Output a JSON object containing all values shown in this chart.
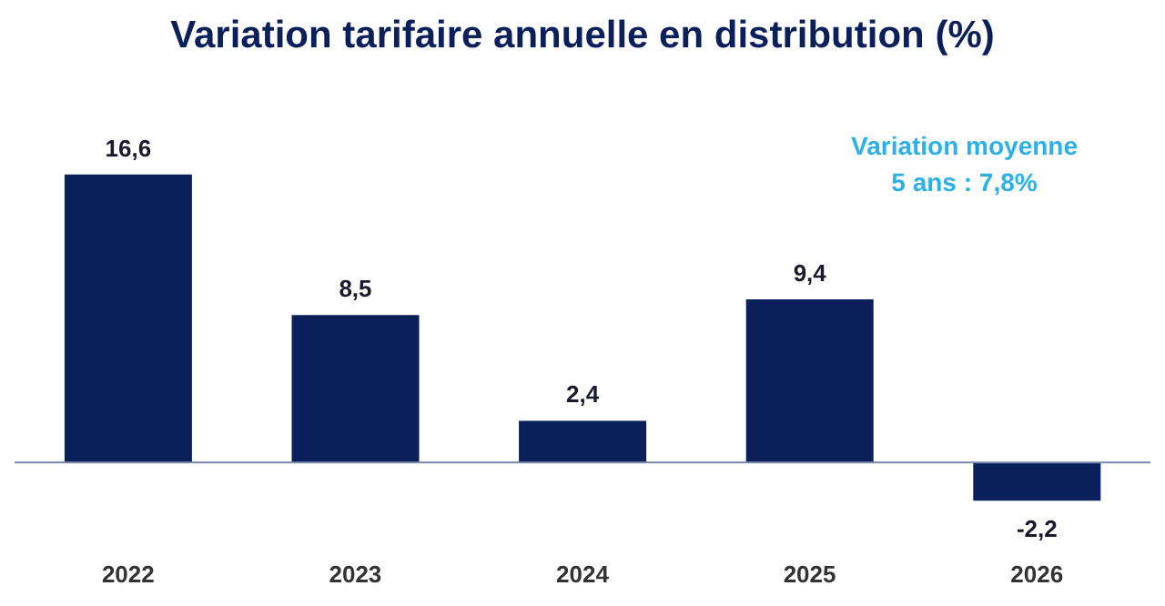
{
  "chart_data": {
    "type": "bar",
    "title": "Variation tarifaire annuelle en distribution (%)",
    "categories": [
      "2022",
      "2023",
      "2024",
      "2025",
      "2026"
    ],
    "values": [
      16.6,
      8.5,
      2.4,
      9.4,
      -2.2
    ],
    "value_labels": [
      "16,6",
      "8,5",
      "2,4",
      "9,4",
      "-2,2"
    ],
    "color": "#0b1f5b",
    "annotations": [
      "Variation moyenne",
      "5 ans : 7,8%"
    ],
    "ref_lines": [
      {
        "axis": "y",
        "value": 0,
        "color": "#7a8aa8"
      }
    ],
    "grid": false,
    "legend": false
  }
}
